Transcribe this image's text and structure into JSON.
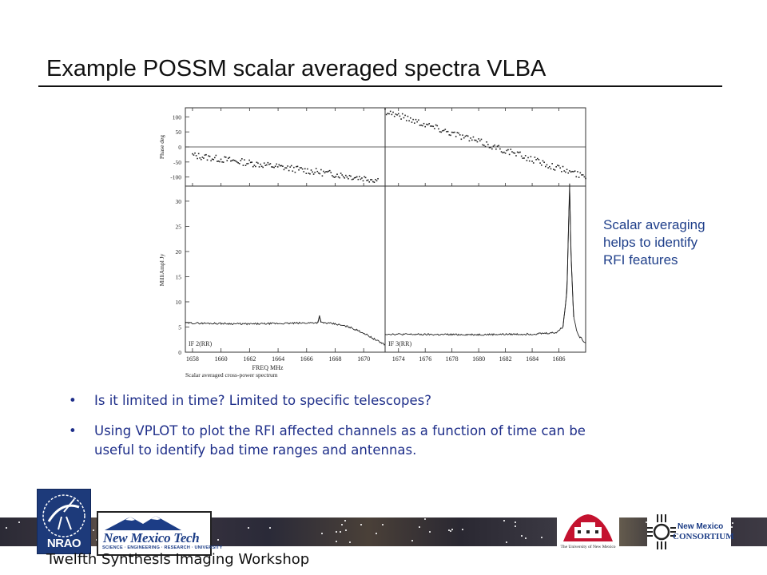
{
  "slide": {
    "title": "Example POSSM scalar averaged spectra VLBA",
    "note_lines": [
      "Scalar averaging",
      "helps to identify",
      "RFI features"
    ],
    "bullets": [
      {
        "lines": [
          "Is it limited in time? Limited to specific telescopes?"
        ]
      },
      {
        "lines": [
          "Using VPLOT to plot the RFI affected channels as a function of time can be",
          "useful to identify bad time ranges and antennas."
        ]
      }
    ],
    "footer": "Twelfth Synthesis Imaging Workshop"
  },
  "figure": {
    "phase_axis_label": "Phase deg",
    "amp_axis_label": "MilliAmpl Jy",
    "xlabel": "FREQ MHz",
    "caption": "Scalar averaged cross-power spectrum",
    "phase_ticks": [
      "100",
      "50",
      "0",
      "-50",
      "-100"
    ],
    "amp_ticks": [
      "30",
      "25",
      "20",
      "15",
      "10",
      "5",
      "0"
    ],
    "left_x_ticks": [
      "1658",
      "1660",
      "1662",
      "1664",
      "1666",
      "1668",
      "1670"
    ],
    "right_x_ticks": [
      "1674",
      "1676",
      "1678",
      "1680",
      "1682",
      "1684",
      "1686"
    ],
    "left_label": "IF 2(RR)",
    "right_label": "IF 3(RR)"
  },
  "logos": {
    "nrao": "NRAO",
    "nmt_title": "New Mexico Tech",
    "nmt_sub": "SCIENCE · ENGINEERING · RESEARCH · UNIVERSITY",
    "unm": "The University of New Mexico",
    "nmc_line1": "New Mexico",
    "nmc_line2": "CONSORTIUM"
  },
  "colors": {
    "title": "#111111",
    "bullet_text": "#1f2f8a",
    "note_text": "#1f3f8a"
  },
  "chart_data": {
    "type": "line",
    "title": "",
    "caption": "Scalar averaged cross-power spectrum",
    "panels": [
      {
        "name": "IF 2(RR)",
        "x_range": [
          1657.5,
          1671.5
        ],
        "phase": {
          "ylabel": "Phase deg",
          "ylim": [
            -130,
            130
          ],
          "x": [
            1658,
            1671
          ],
          "y": [
            -28,
            -110
          ]
        },
        "amplitude": {
          "ylabel": "MilliAmpl Jy",
          "ylim": [
            0,
            33
          ],
          "xlabel": "FREQ MHz",
          "x": [
            1657.5,
            1660,
            1662,
            1664,
            1666,
            1666.8,
            1666.9,
            1667,
            1668,
            1669,
            1670,
            1671,
            1671.5
          ],
          "y": [
            5.8,
            5.7,
            5.6,
            5.7,
            5.8,
            5.9,
            7.3,
            5.9,
            5.6,
            5.0,
            3.8,
            2.2,
            1.5
          ]
        }
      },
      {
        "name": "IF 3(RR)",
        "x_range": [
          1673,
          1688
        ],
        "phase": {
          "ylabel": "Phase deg",
          "ylim": [
            -130,
            130
          ],
          "x": [
            1673,
            1688
          ],
          "y": [
            120,
            -100
          ]
        },
        "amplitude": {
          "ylabel": "MilliAmpl Jy",
          "ylim": [
            0,
            33
          ],
          "xlabel": "FREQ MHz",
          "x": [
            1673,
            1676,
            1680,
            1684,
            1685.8,
            1686.3,
            1686.6,
            1686.8,
            1686.9,
            1687.1,
            1687.4,
            1688
          ],
          "y": [
            3.6,
            3.5,
            3.5,
            3.6,
            3.9,
            5.0,
            12,
            33.5,
            20,
            7,
            3.5,
            1.8
          ]
        }
      }
    ]
  }
}
